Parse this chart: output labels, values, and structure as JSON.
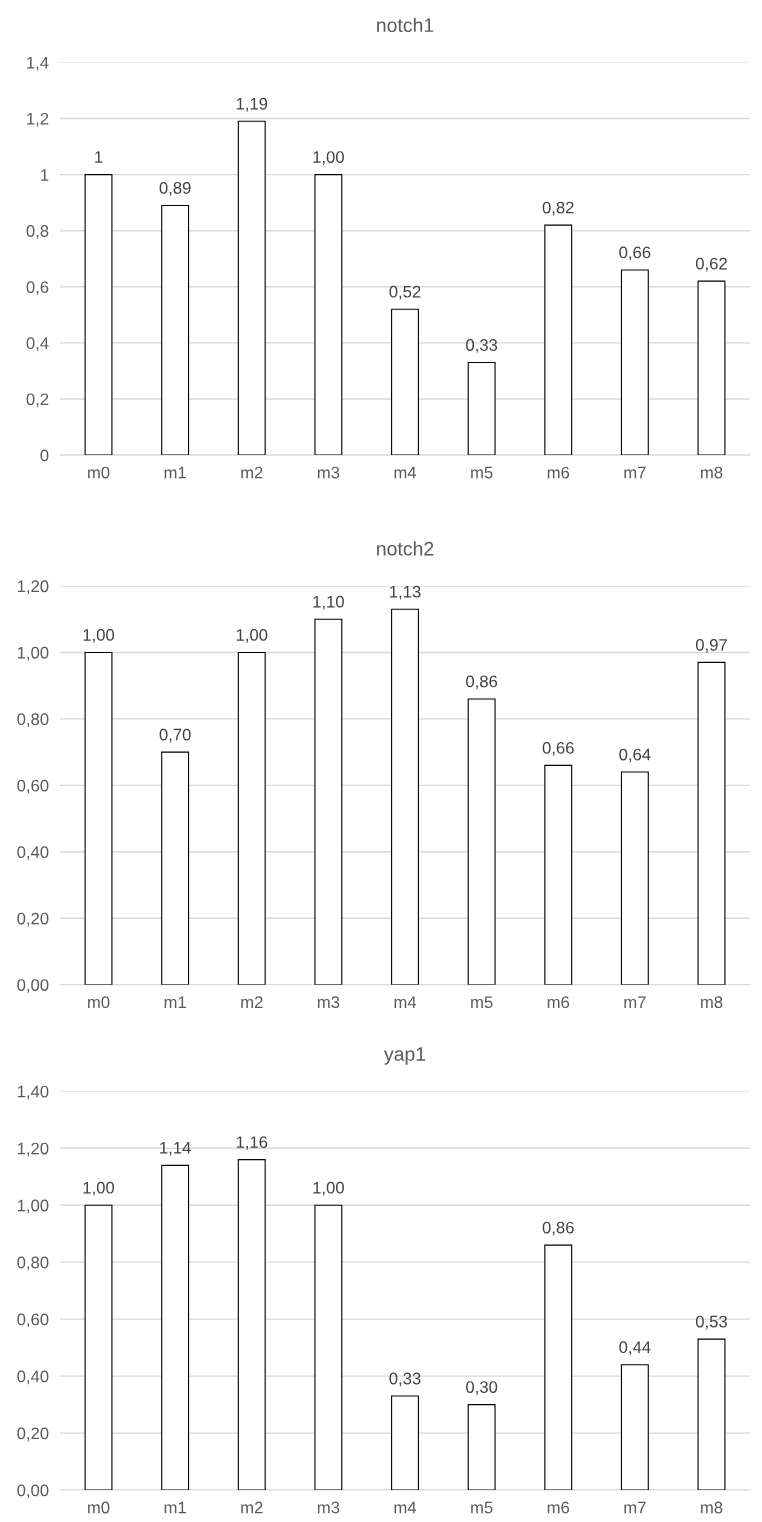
{
  "chart_data": [
    {
      "type": "bar",
      "title": "notch1",
      "categories": [
        "m0",
        "m1",
        "m2",
        "m3",
        "m4",
        "m5",
        "m6",
        "m7",
        "m8"
      ],
      "values": [
        1,
        0.89,
        1.19,
        1.0,
        0.52,
        0.33,
        0.82,
        0.66,
        0.62
      ],
      "value_labels": [
        "1",
        "0,89",
        "1,19",
        "1,00",
        "0,52",
        "0,33",
        "0,82",
        "0,66",
        "0,62"
      ],
      "color": "#ffffff",
      "ylim": [
        0,
        1.4
      ],
      "yticks": [
        0,
        {
          "value": 0.2,
          "label": "0,2"
        },
        {
          "value": 0.4,
          "label": "0,4"
        },
        {
          "value": 0.6,
          "label": "0,6"
        },
        {
          "value": 0.8,
          "label": "0,8"
        },
        1,
        {
          "value": 1.2,
          "label": "1,2"
        },
        {
          "value": 1.4,
          "label": "1,4"
        }
      ],
      "grid": "y"
    },
    {
      "type": "bar",
      "title": "notch2",
      "categories": [
        "m0",
        "m1",
        "m2",
        "m3",
        "m4",
        "m5",
        "m6",
        "m7",
        "m8"
      ],
      "values": [
        1.0,
        0.7,
        1.0,
        1.1,
        1.13,
        0.86,
        0.66,
        0.64,
        0.97
      ],
      "value_labels": [
        "1,00",
        "0,70",
        "1,00",
        "1,10",
        "1,13",
        "0,86",
        "0,66",
        "0,64",
        "0,97"
      ],
      "color": "#ffffff",
      "ylim": [
        0,
        1.2
      ],
      "yticks": [
        {
          "value": 0,
          "label": "0,00"
        },
        {
          "value": 0.2,
          "label": "0,20"
        },
        {
          "value": 0.4,
          "label": "0,40"
        },
        {
          "value": 0.6,
          "label": "0,60"
        },
        {
          "value": 0.8,
          "label": "0,80"
        },
        {
          "value": 1.0,
          "label": "1,00"
        },
        {
          "value": 1.2,
          "label": "1,20"
        }
      ],
      "grid": "y"
    },
    {
      "type": "bar",
      "title": "yap1",
      "categories": [
        "m0",
        "m1",
        "m2",
        "m3",
        "m4",
        "m5",
        "m6",
        "m7",
        "m8"
      ],
      "values": [
        1.0,
        1.14,
        1.16,
        1.0,
        0.33,
        0.3,
        0.86,
        0.44,
        0.53
      ],
      "value_labels": [
        "1,00",
        "1,14",
        "1,16",
        "1,00",
        "0,33",
        "0,30",
        "0,86",
        "0,44",
        "0,53"
      ],
      "color": "#ffffff",
      "ylim": [
        0,
        1.4
      ],
      "yticks": [
        {
          "value": 0,
          "label": "0,00"
        },
        {
          "value": 0.2,
          "label": "0,20"
        },
        {
          "value": 0.4,
          "label": "0,40"
        },
        {
          "value": 0.6,
          "label": "0,60"
        },
        {
          "value": 0.8,
          "label": "0,80"
        },
        {
          "value": 1.0,
          "label": "1,00"
        },
        {
          "value": 1.2,
          "label": "1,20"
        },
        {
          "value": 1.4,
          "label": "1,40"
        }
      ],
      "grid": "y"
    }
  ]
}
